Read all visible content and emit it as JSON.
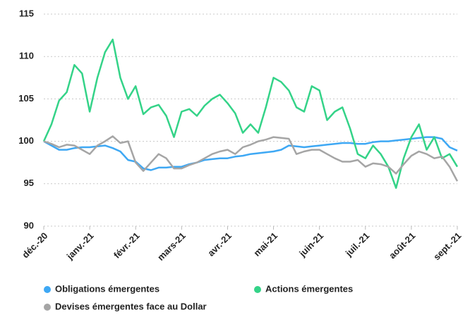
{
  "chart_data": {
    "type": "line",
    "categories": [
      "déc.-20",
      null,
      null,
      null,
      null,
      null,
      "janv.-21",
      null,
      null,
      null,
      null,
      null,
      "févr.-21",
      null,
      null,
      null,
      null,
      null,
      "mars-21",
      null,
      null,
      null,
      null,
      null,
      "avr.-21",
      null,
      null,
      null,
      null,
      null,
      "mai-21",
      null,
      null,
      null,
      null,
      null,
      "juin-21",
      null,
      null,
      null,
      null,
      null,
      "juil.-21",
      null,
      null,
      null,
      null,
      null,
      "août-21",
      null,
      null,
      null,
      null,
      null,
      "sept.-21"
    ],
    "series": [
      {
        "name": "Obligations émergentes",
        "color": "#3ea8f4",
        "values": [
          100,
          99.5,
          99,
          99,
          99.2,
          99.3,
          99.3,
          99.4,
          99.5,
          99.2,
          98.8,
          97.8,
          97.6,
          96.8,
          96.6,
          96.9,
          96.9,
          97,
          97,
          97.3,
          97.5,
          97.8,
          97.9,
          98,
          98,
          98.2,
          98.3,
          98.5,
          98.6,
          98.7,
          98.8,
          99,
          99.5,
          99.4,
          99.3,
          99.4,
          99.5,
          99.6,
          99.7,
          99.8,
          99.8,
          99.7,
          99.7,
          99.9,
          100,
          100,
          100.1,
          100.2,
          100.3,
          100.4,
          100.5,
          100.5,
          100.3,
          99.3,
          98.9
        ]
      },
      {
        "name": "Actions émergentes",
        "color": "#34d388",
        "values": [
          100,
          102,
          104.8,
          105.8,
          109,
          108,
          103.5,
          107.5,
          110.5,
          112,
          107.5,
          105,
          106.5,
          103.2,
          104,
          104.3,
          103,
          100.5,
          103.5,
          103.8,
          103,
          104.2,
          105,
          105.5,
          104.5,
          103.3,
          101,
          102,
          101,
          104,
          107.5,
          107,
          106,
          104,
          103.5,
          106.5,
          106,
          102.5,
          103.5,
          104,
          101.5,
          98.5,
          98,
          99.5,
          98.5,
          97,
          94.5,
          98,
          100.5,
          102,
          99,
          100.5,
          98,
          98.5,
          97
        ]
      },
      {
        "name": "Devises émergentes face au Dollar",
        "color": "#a5a5a5",
        "values": [
          100,
          99.7,
          99.3,
          99.6,
          99.5,
          99,
          98.5,
          99.5,
          100,
          100.6,
          99.8,
          100,
          97.5,
          96.5,
          97.5,
          98.5,
          98,
          96.8,
          96.8,
          97.2,
          97.5,
          98,
          98.5,
          98.8,
          99,
          98.5,
          99.3,
          99.6,
          100,
          100.2,
          100.5,
          100.4,
          100.3,
          98.5,
          98.8,
          99,
          99,
          98.5,
          98,
          97.6,
          97.6,
          97.8,
          97,
          97.4,
          97.3,
          97,
          96.2,
          97.3,
          98.3,
          98.8,
          98.5,
          98,
          98.2,
          97,
          95.3
        ]
      }
    ],
    "ylim": [
      90,
      115
    ],
    "yticks": [
      90,
      95,
      100,
      105,
      110,
      115
    ],
    "grid": true,
    "legend": "bottom"
  }
}
